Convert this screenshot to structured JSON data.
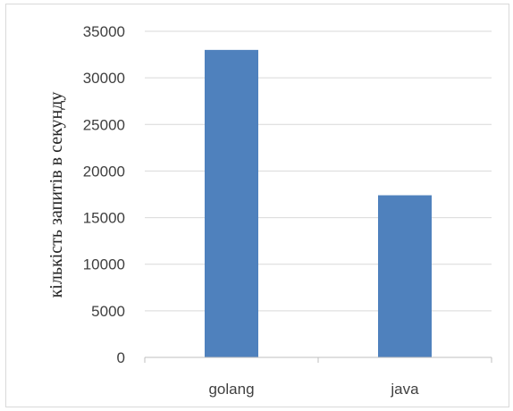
{
  "chart_data": {
    "type": "bar",
    "title": "",
    "xlabel": "",
    "ylabel": "кількість запитів в секунду",
    "categories": [
      "golang",
      "java"
    ],
    "values": [
      33000,
      17400
    ],
    "ylim": [
      0,
      35000
    ],
    "yticks": [
      0,
      5000,
      10000,
      15000,
      20000,
      25000,
      30000,
      35000
    ],
    "grid": true,
    "legend": "none",
    "bar_color": "#4f81bd",
    "grid_color": "#d9d9d9",
    "axis_color": "#bfbfbf"
  }
}
